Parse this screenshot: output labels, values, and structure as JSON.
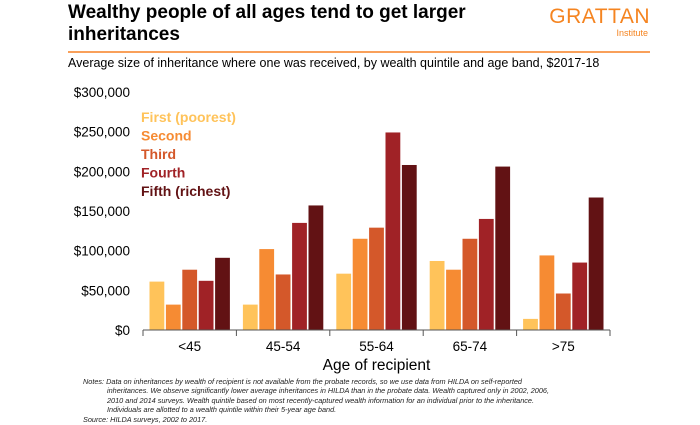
{
  "header": {
    "title": "Wealthy people of all ages tend to get larger inheritances",
    "logo_main": "GRATTAN",
    "logo_sub": "Institute",
    "subtitle": "Average size of inheritance where one was received, by wealth quintile and age band, $2017-18"
  },
  "chart_data": {
    "type": "bar",
    "categories": [
      "<45",
      "45-54",
      "55-64",
      "65-74",
      ">75"
    ],
    "xlabel": "Age of recipient",
    "ylabel": "",
    "ylim": [
      0,
      300000
    ],
    "yticks": [
      "$0",
      "$50,000",
      "$100,000",
      "$150,000",
      "$200,000",
      "$250,000",
      "$300,000"
    ],
    "legend_position": "top-left",
    "grid": false,
    "series": [
      {
        "name": "First (poorest)",
        "color": "#FFC35A",
        "values": [
          61000,
          32000,
          71000,
          87000,
          14000
        ]
      },
      {
        "name": "Second",
        "color": "#F68B33",
        "values": [
          32000,
          102000,
          115000,
          76000,
          94000
        ]
      },
      {
        "name": "Third",
        "color": "#D4582A",
        "values": [
          76000,
          70000,
          129000,
          115000,
          46000
        ]
      },
      {
        "name": "Fourth",
        "color": "#A02226",
        "values": [
          62000,
          135000,
          249000,
          140000,
          85000
        ]
      },
      {
        "name": "Fifth (richest)",
        "color": "#621214",
        "values": [
          91000,
          157000,
          208000,
          206000,
          167000
        ]
      }
    ]
  },
  "notes": {
    "line1": "Notes: Data on inheritances by wealth of recipient is not available from the probate records, so we use data from HILDA on self-reported",
    "line2": "inheritances. We observe significantly lower average inheritances in HILDA than in the probate data. Wealth captured only in 2002, 2006,",
    "line3": "2010 and 2014 surveys. Wealth quintile based on most recently-captured wealth information for an individual prior to the inheritance.",
    "line4": "Individuals are allotted to a wealth quintile within their 5-year age band.",
    "source": "Source: HILDA surveys, 2002 to 2017."
  }
}
